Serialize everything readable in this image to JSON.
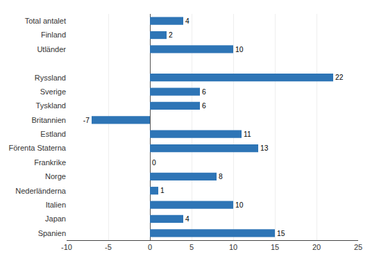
{
  "chart_data": {
    "type": "bar",
    "orientation": "horizontal",
    "categories": [
      "Total antalet",
      "Finland",
      "Utländer",
      null,
      "Ryssland",
      "Sverige",
      "Tyskland",
      "Britannien",
      "Estland",
      "Förenta Staterna",
      "Frankrike",
      "Norge",
      "Nederländerna",
      "Italien",
      "Japan",
      "Spanien"
    ],
    "values": [
      4,
      2,
      10,
      null,
      22,
      6,
      6,
      -7,
      11,
      13,
      0,
      8,
      1,
      10,
      4,
      15
    ],
    "color": "#2E75B6",
    "xlim": [
      -10,
      25
    ],
    "xticks": [
      -10,
      -5,
      0,
      5,
      10,
      15,
      20,
      25
    ],
    "grid": true,
    "data_labels": true
  }
}
